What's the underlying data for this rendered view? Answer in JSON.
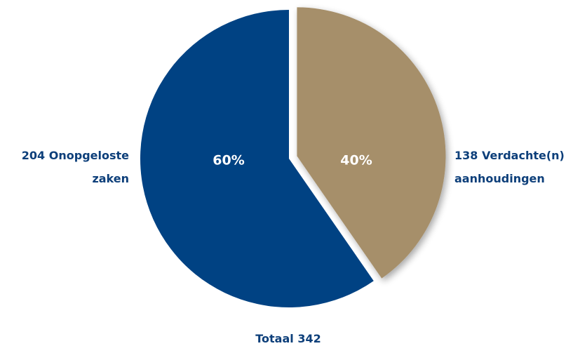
{
  "chart_data": {
    "type": "pie",
    "categories": [
      "Onopgeloste zaken",
      "Verdachte(n) aanhoudingen"
    ],
    "values": [
      204,
      138
    ],
    "percent_labels": [
      "60%",
      "40%"
    ],
    "category_labels": [
      [
        "204 Onopgeloste",
        "zaken"
      ],
      [
        "138 Verdachte(n)",
        "aanhoudingen"
      ]
    ],
    "total_label": "Totaal 342",
    "colors": [
      "#004283",
      "#a68f6a"
    ],
    "label_text_color": "#0d3f7a",
    "exploded_slice": 1
  }
}
